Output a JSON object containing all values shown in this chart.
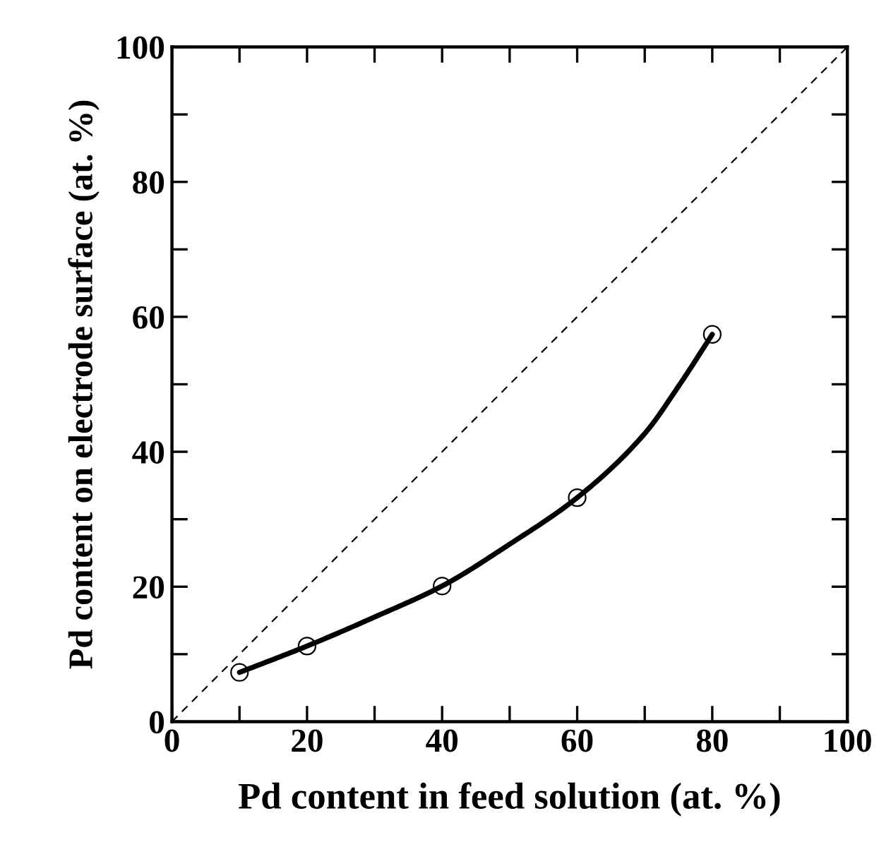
{
  "chart_data": {
    "type": "scatter",
    "xlabel": "Pd content in feed solution (at. %)",
    "ylabel": "Pd content on electrode surface (at. %)",
    "xlim": [
      0,
      100
    ],
    "ylim": [
      0,
      100
    ],
    "xticks": [
      0,
      {
        "value": 10,
        "label": null
      },
      20,
      {
        "value": 30,
        "label": null
      },
      40,
      {
        "value": 50,
        "label": null
      },
      60,
      {
        "value": 70,
        "label": null
      },
      80,
      {
        "value": 90,
        "label": null
      },
      100
    ],
    "yticks": [
      0,
      {
        "value": 10,
        "label": null
      },
      20,
      {
        "value": 30,
        "label": null
      },
      40,
      {
        "value": 50,
        "label": null
      },
      60,
      {
        "value": 70,
        "label": null
      },
      80,
      {
        "value": 90,
        "label": null
      },
      100
    ],
    "grid": false,
    "legend": false,
    "series": [
      {
        "type": "line",
        "color": "#000000",
        "x": [
          0,
          100
        ],
        "values": [
          0,
          100
        ],
        "line_style": "dashed",
        "marker": "none"
      },
      {
        "type": "line",
        "color": "#000000",
        "x": [
          10,
          20,
          30,
          40,
          50,
          60,
          70,
          75,
          80
        ],
        "values": [
          7.3,
          11.2,
          15.5,
          20.1,
          26.3,
          33.2,
          42.7,
          49.7,
          57.4
        ],
        "line_style": "solid",
        "marker": "none"
      },
      {
        "color": "#000000",
        "x": [
          10,
          20,
          40,
          60,
          80
        ],
        "values": [
          7.3,
          11.2,
          20.1,
          33.2,
          57.4
        ],
        "marker": "circle"
      }
    ]
  }
}
